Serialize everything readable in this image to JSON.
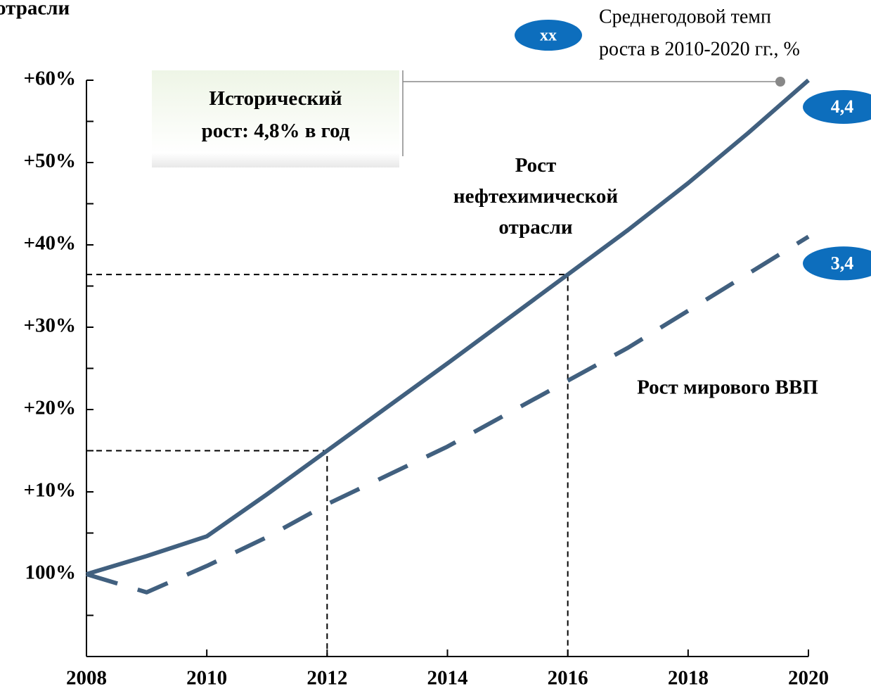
{
  "chart_data": {
    "type": "line",
    "title": "отрасли",
    "x": [
      2008,
      2009,
      2010,
      2011,
      2012,
      2013,
      2014,
      2015,
      2016,
      2017,
      2018,
      2019,
      2020
    ],
    "series": [
      {
        "name": "Рост нефтехимической отрасли",
        "color": "#41607f",
        "dash": false,
        "rate_label": "4,4",
        "values": [
          0,
          2.2,
          4.6,
          9.7,
          15,
          20.3,
          25.6,
          31,
          36.4,
          41.8,
          47.5,
          53.6,
          60
        ]
      },
      {
        "name": "Рост мирового ВВП",
        "color": "#41607f",
        "dash": true,
        "rate_label": "3,4",
        "values": [
          0,
          -2.2,
          1,
          4.5,
          8.5,
          12,
          15.5,
          19.5,
          23.5,
          27.5,
          32,
          36.5,
          41
        ]
      }
    ],
    "xlim": [
      2008,
      2020
    ],
    "xticks": [
      2008,
      2010,
      2012,
      2014,
      2016,
      2018,
      2020
    ],
    "ylim": [
      -10,
      60
    ],
    "yticks": [
      {
        "value": 0,
        "label": "100%"
      },
      {
        "value": 10,
        "label": "+10%"
      },
      {
        "value": 20,
        "label": "+20%"
      },
      {
        "value": 30,
        "label": "+30%"
      },
      {
        "value": 40,
        "label": "+40%"
      },
      {
        "value": 50,
        "label": "+50%"
      },
      {
        "value": 60,
        "label": "+60%"
      }
    ],
    "yminorticks": [
      -5,
      5,
      15,
      25,
      35,
      45,
      55
    ],
    "reference_points": [
      {
        "series": 0,
        "index": 4
      },
      {
        "series": 0,
        "index": 8
      }
    ],
    "historic_box": "Исторический рост: 4,8% в год",
    "legend_bubble": "xx",
    "legend_text": [
      "Среднегодовой темп",
      "роста в 2010-2020 гг., %"
    ]
  }
}
